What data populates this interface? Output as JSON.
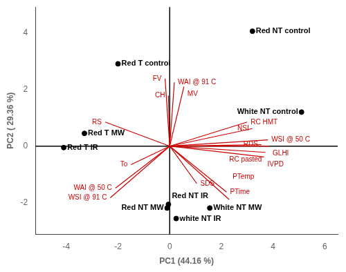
{
  "chart_data": {
    "type": "scatter",
    "xlabel": "PC1 (44.16 %)",
    "ylabel": "PC2 ( 29.36 %)",
    "xlim": [
      -5.2,
      6.5
    ],
    "ylim": [
      -3.1,
      4.9
    ],
    "xticks": [
      -4,
      -2,
      0,
      2,
      4,
      6
    ],
    "yticks": [
      -2,
      0,
      2,
      4
    ],
    "grid": false,
    "series": [
      {
        "type": "scatter",
        "color": "#000000",
        "labels": [
          "Red NT control",
          "Red T control",
          "White NT control",
          "Red T MW",
          "Red T IR",
          "Red NT IR",
          "Red NT MW",
          "White NT MW",
          "white NT IR"
        ],
        "x": [
          3.2,
          -2.0,
          5.1,
          -3.3,
          -4.1,
          -0.05,
          -0.1,
          1.55,
          0.25
        ],
        "y": [
          4.05,
          2.9,
          1.2,
          0.45,
          -0.05,
          -2.05,
          -2.18,
          -2.18,
          -2.55
        ]
      },
      {
        "type": "vector",
        "color": "#cc0000",
        "labels": [
          "FV",
          "WAI @ 91 C",
          "MV",
          "CH",
          "RC HMT",
          "NSI",
          "WSI @ 50 C",
          "RDS",
          "GLHI",
          "RC pasted",
          "IVPD",
          "RS",
          "To",
          "WAI @ 50 C",
          "WSI @ 91 C",
          "SDS",
          "PTime",
          "PTemp"
        ],
        "x": [
          -0.18,
          0.18,
          0.55,
          -0.05,
          3.0,
          3.2,
          3.8,
          3.55,
          3.85,
          3.7,
          3.65,
          -2.5,
          -1.5,
          -2.1,
          -2.3,
          1.05,
          2.2,
          2.3
        ],
        "y": [
          2.38,
          2.25,
          2.1,
          1.78,
          0.85,
          0.62,
          0.22,
          0.05,
          0.0,
          -0.22,
          -0.38,
          0.85,
          -0.65,
          -1.48,
          -1.82,
          -1.32,
          -1.62,
          -1.88
        ]
      }
    ]
  }
}
